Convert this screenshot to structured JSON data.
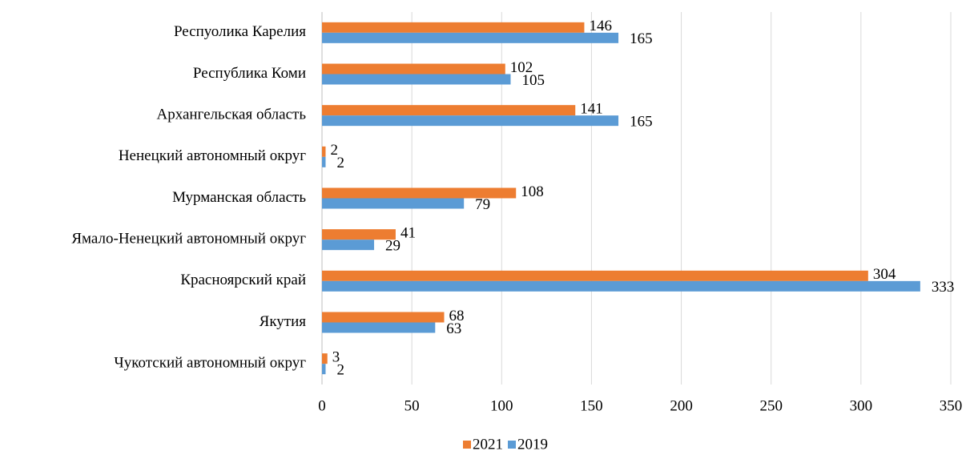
{
  "chart_data": {
    "type": "bar",
    "orientation": "horizontal",
    "categories": [
      "Респуолика Карелия",
      "Республика Коми",
      "Архангельская область",
      "Ненецкий автономный округ",
      "Мурманская область",
      "Ямало-Ненецкий автономный округ",
      "Красноярский край",
      "Якутия",
      "Чукотский автономный округ"
    ],
    "series": [
      {
        "name": "2021",
        "color": "#ed7d31",
        "values": [
          146,
          102,
          141,
          2,
          108,
          41,
          304,
          68,
          3
        ]
      },
      {
        "name": "2019",
        "color": "#5b9bd5",
        "values": [
          165,
          105,
          165,
          2,
          79,
          29,
          333,
          63,
          2
        ]
      }
    ],
    "xlim": [
      0,
      350
    ],
    "xticks": [
      0,
      50,
      100,
      150,
      200,
      250,
      300,
      350
    ],
    "grid": true,
    "legend": "bottom"
  }
}
